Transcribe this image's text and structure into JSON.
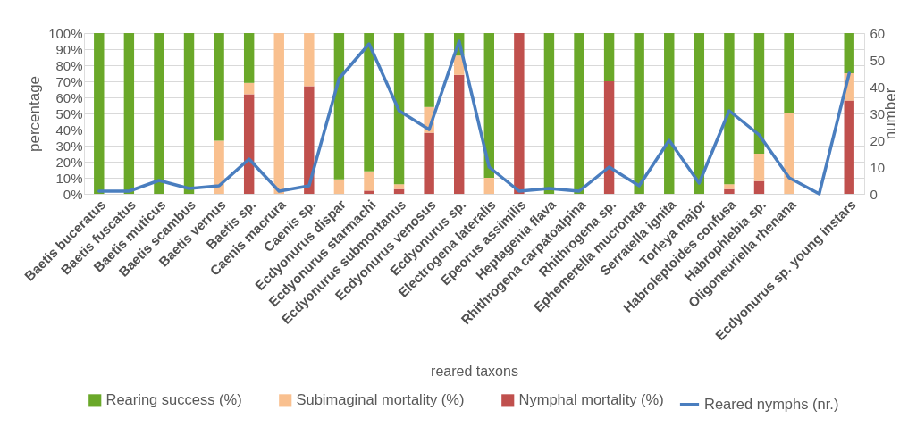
{
  "chart_data": {
    "type": "bar",
    "stacked": true,
    "xlabel": "reared taxons",
    "ylabel": "percentage",
    "y2label": "number",
    "categories": [
      "Baetis buceratus",
      "Baetis fuscatus",
      "Baetis muticus",
      "Baetis scambus",
      "Baetis vernus",
      "Baetis sp.",
      "Caenis macrura",
      "Caenis sp.",
      "Ecdyonurus dispar",
      "Ecdyonurus starmachi",
      "Ecdyonurus submontanus",
      "Ecdyonurus venosus",
      "Ecdyonurus sp.",
      "Electrogena lateralis",
      "Epeorus assimilis",
      "Heptagenia flava",
      "Rhithrogena carpatoalpina",
      "Rhithrogena sp.",
      "Ephemerella mucronata",
      "Serratella ignita",
      "Torleya major",
      "Habroleptoides confusa",
      "Habrophlebia sp.",
      "Oligoneuriella rhenana",
      null,
      "Ecdyonurus sp. young instars"
    ],
    "ylim": [
      0,
      100
    ],
    "yticks": [
      {
        "value": 0,
        "label": "0%"
      },
      {
        "value": 10,
        "label": "10%"
      },
      {
        "value": 20,
        "label": "20%"
      },
      {
        "value": 30,
        "label": "30%"
      },
      {
        "value": 40,
        "label": "40%"
      },
      {
        "value": 50,
        "label": "50%"
      },
      {
        "value": 60,
        "label": "60%"
      },
      {
        "value": 70,
        "label": "70%"
      },
      {
        "value": 80,
        "label": "80%"
      },
      {
        "value": 90,
        "label": "90%"
      },
      {
        "value": 100,
        "label": "100%"
      }
    ],
    "y2lim": [
      0,
      60
    ],
    "y2ticks": [
      0,
      10,
      20,
      30,
      40,
      50,
      60
    ],
    "grid": "y",
    "legend": "bottom",
    "series": [
      {
        "name": "Nymphal mortality (%)",
        "color": "#c0504d",
        "values": [
          0,
          0,
          0,
          0,
          0,
          62,
          0,
          67,
          0,
          2,
          3,
          38,
          74,
          0,
          100,
          0,
          0,
          70,
          0,
          0,
          0,
          3,
          8,
          0,
          null,
          58
        ]
      },
      {
        "name": "Subimaginal mortality (%)",
        "color": "#f9c08f",
        "values": [
          0,
          0,
          0,
          0,
          33,
          7,
          100,
          33,
          9,
          12,
          3,
          16,
          12,
          10,
          0,
          0,
          0,
          0,
          0,
          0,
          0,
          3,
          17,
          50,
          null,
          17
        ]
      },
      {
        "name": "Rearing success (%)",
        "color": "#6aa829",
        "values": [
          100,
          100,
          100,
          100,
          67,
          31,
          0,
          0,
          91,
          86,
          94,
          46,
          14,
          90,
          0,
          100,
          100,
          30,
          100,
          100,
          100,
          94,
          75,
          50,
          null,
          25
        ]
      },
      {
        "name": "Reared nymphs (nr.)",
        "type": "line",
        "axis": "y2",
        "color": "#4a7ebf",
        "values": [
          1,
          1,
          5,
          2,
          3,
          13,
          1,
          3,
          43,
          56,
          31,
          24,
          57,
          10,
          1,
          2,
          1,
          10,
          3,
          20,
          4,
          31,
          22,
          6,
          0,
          45
        ]
      }
    ]
  }
}
